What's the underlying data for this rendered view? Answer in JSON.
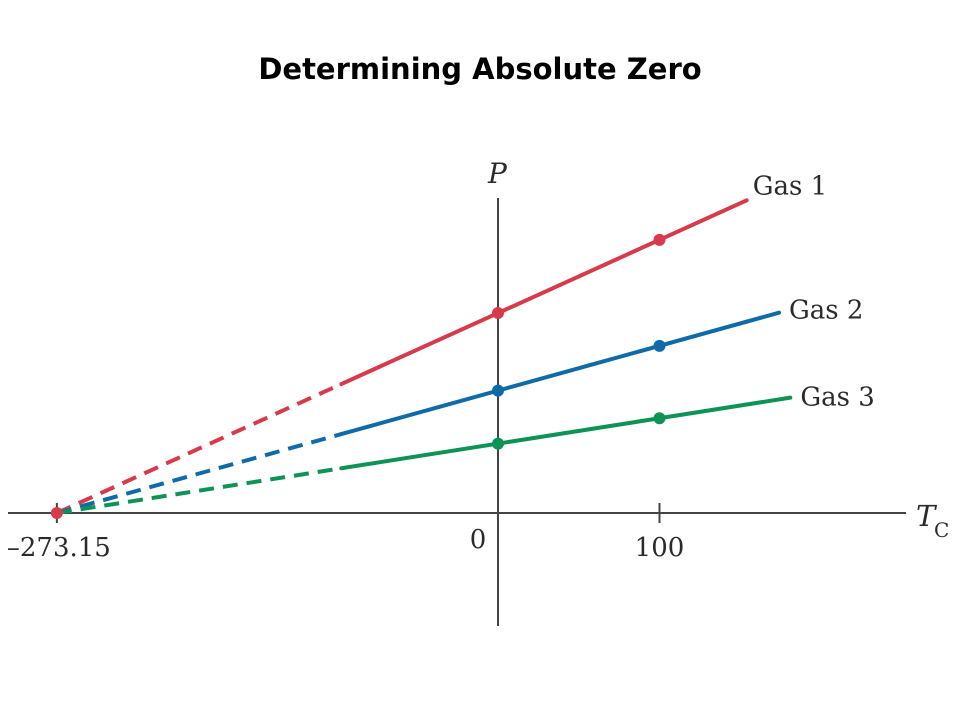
{
  "title": "Determining Absolute Zero",
  "chart_data": {
    "type": "line",
    "title": "Determining Absolute Zero",
    "xlabel": "T",
    "xlabel_sub": "C",
    "ylabel": "P",
    "x_ticks": [
      "–273.15",
      "0",
      "100"
    ],
    "x_tick_values": [
      -273.15,
      0,
      100
    ],
    "x_zero": -273.15,
    "grid": false,
    "series": [
      {
        "name": "Gas 1",
        "color": "#d63a4b",
        "slope": 0.00366,
        "measured_x": [
          0,
          100
        ],
        "x_end": 154
      },
      {
        "name": "Gas 2",
        "color": "#0f6ba8",
        "slope": 0.00224,
        "measured_x": [
          0,
          100
        ],
        "x_end": 174
      },
      {
        "name": "Gas 3",
        "color": "#0e9356",
        "slope": 0.00127,
        "measured_x": [
          0,
          100
        ],
        "x_end": 181
      }
    ]
  }
}
